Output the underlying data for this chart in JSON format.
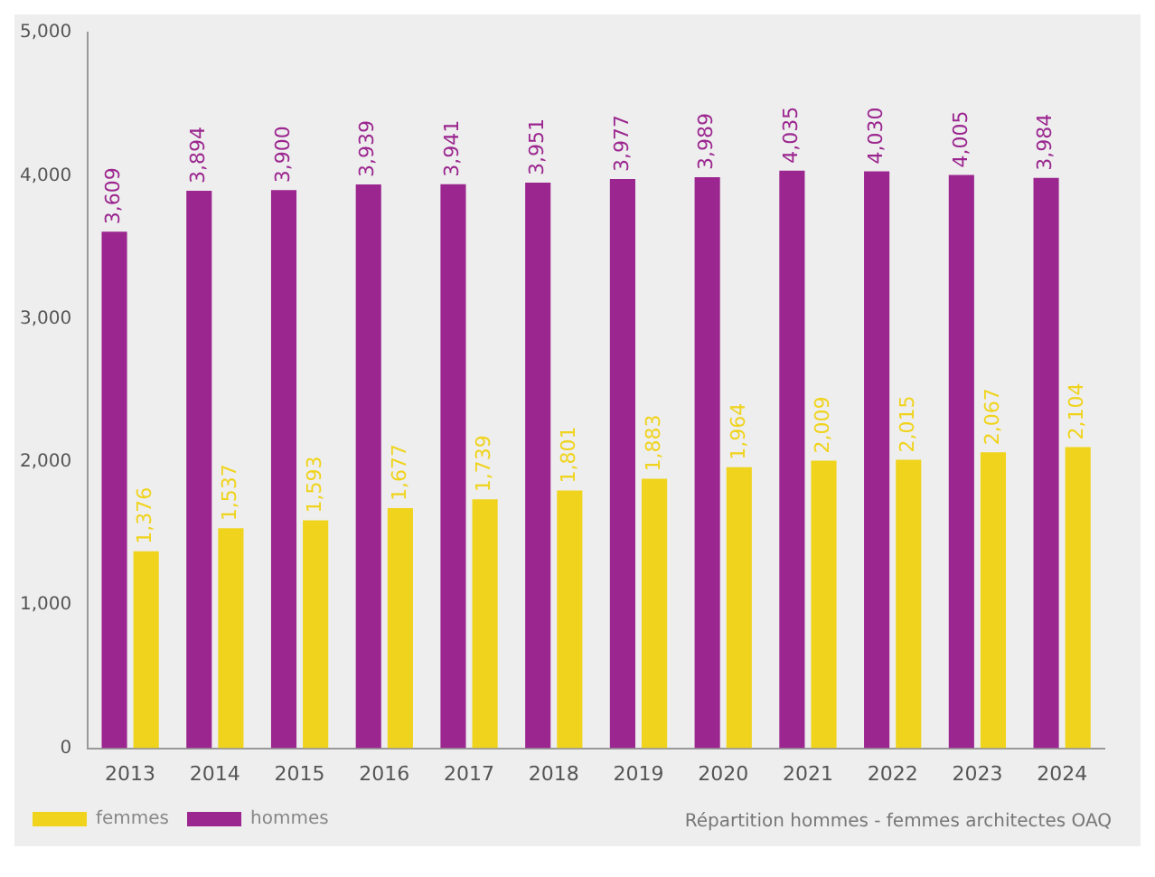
{
  "chart_data": {
    "type": "bar",
    "categories": [
      "2013",
      "2014",
      "2015",
      "2016",
      "2017",
      "2018",
      "2019",
      "2020",
      "2021",
      "2022",
      "2023",
      "2024"
    ],
    "series": [
      {
        "name": "hommes",
        "color": "#9b268f",
        "values": [
          3609,
          3894,
          3900,
          3939,
          3941,
          3951,
          3977,
          3989,
          4035,
          4030,
          4005,
          3984
        ],
        "value_labels": [
          "3,609",
          "3,894",
          "3,900",
          "3,939",
          "3,941",
          "3,951",
          "3,977",
          "3,989",
          "4,035",
          "4,030",
          "4,005",
          "3,984"
        ]
      },
      {
        "name": "femmes",
        "color": "#f0d31c",
        "values": [
          1376,
          1537,
          1593,
          1677,
          1739,
          1801,
          1883,
          1964,
          2009,
          2015,
          2067,
          2104
        ],
        "value_labels": [
          "1,376",
          "1,537",
          "1,593",
          "1,677",
          "1,739",
          "1,801",
          "1,883",
          "1,964",
          "2,009",
          "2,015",
          "2,067",
          "2,104"
        ]
      }
    ],
    "ylim": [
      0,
      5000
    ],
    "yticks": [
      0,
      {
        "value": 1000,
        "label": "1,000"
      },
      {
        "value": 2000,
        "label": "2,000"
      },
      {
        "value": 3000,
        "label": "3,000"
      },
      {
        "value": 4000,
        "label": "4,000"
      },
      {
        "value": 5000,
        "label": "5,000"
      }
    ],
    "grid": false,
    "legend": "bottom left",
    "annotations": [
      "Répartition hommes - femmes architectes OAQ"
    ]
  }
}
